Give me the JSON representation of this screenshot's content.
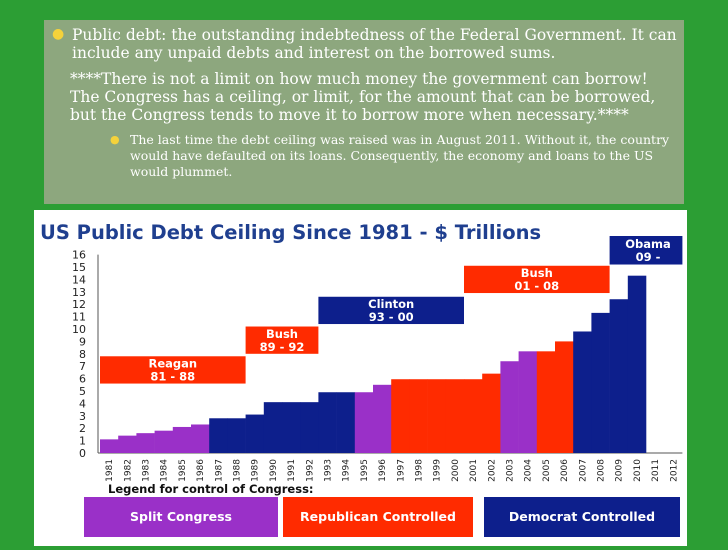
{
  "slide": {
    "bullet1": "Public debt: the outstanding indebtedness of the Federal Government.  It can include any unpaid debts and interest on the borrowed sums.",
    "bullet2": "****There is not a limit on how much money the government can borrow!  The Congress has a ceiling, or limit, for the amount that can be borrowed, but the Congress tends to move it to borrow more when necessary.****",
    "bullet3": "The last time the debt ceiling was raised was in August 2011.  Without it, the country would have defaulted on its loans.  Consequently, the economy and loans to the US would plummet."
  },
  "colors": {
    "background": "#2c9e34",
    "textbox": "#8da77e",
    "bullet": "#f4d23b",
    "title": "#1f3f8f",
    "split": "#9a30c8",
    "republican": "#ff2b00",
    "democrat": "#0d1f8c",
    "pres_democrat": "#0d1f8c",
    "pres_republican": "#ff2b00"
  },
  "chart_data": {
    "type": "bar",
    "title": "US Public Debt Ceiling Since 1981 - $ Trillions",
    "categories": [
      "1981",
      "1982",
      "1983",
      "1984",
      "1985",
      "1986",
      "1987",
      "1988",
      "1989",
      "1990",
      "1991",
      "1992",
      "1993",
      "1994",
      "1995",
      "1996",
      "1997",
      "1998",
      "1999",
      "2000",
      "2001",
      "2002",
      "2003",
      "2004",
      "2005",
      "2006",
      "2007",
      "2008",
      "2009",
      "2010",
      "2011",
      "2012"
    ],
    "values": [
      1.1,
      1.4,
      1.6,
      1.8,
      2.1,
      2.3,
      2.8,
      2.8,
      3.1,
      4.1,
      4.1,
      4.1,
      4.9,
      4.9,
      4.9,
      5.5,
      5.95,
      5.95,
      5.95,
      5.95,
      5.95,
      6.4,
      7.4,
      8.2,
      8.2,
      9.0,
      9.8,
      11.3,
      12.4,
      14.3,
      null,
      null
    ],
    "control": [
      "split",
      "split",
      "split",
      "split",
      "split",
      "split",
      "democrat",
      "democrat",
      "democrat",
      "democrat",
      "democrat",
      "democrat",
      "democrat",
      "democrat",
      "split",
      "split",
      "republican",
      "republican",
      "republican",
      "republican",
      "republican",
      "republican",
      "split",
      "split",
      "republican",
      "republican",
      "democrat",
      "democrat",
      "democrat",
      "democrat",
      null,
      null
    ],
    "ylim": [
      0,
      16
    ],
    "yticks": [
      "0",
      "1",
      "2",
      "3",
      "4",
      "5",
      "6",
      "7",
      "8",
      "9",
      "10",
      "11",
      "12",
      "13",
      "14",
      "15",
      "16"
    ],
    "legend_title": "Legend for control of Congress:",
    "legend": [
      {
        "key": "split",
        "label": "Split Congress"
      },
      {
        "key": "republican",
        "label": "Republican Controlled"
      },
      {
        "key": "democrat",
        "label": "Democrat Controlled"
      }
    ],
    "presidents": [
      {
        "name": "Reagan",
        "years": "81 - 88",
        "party": "pres_republican",
        "start": 1981,
        "end": 1988,
        "y_top": 7.8,
        "y_bottom": 5.6
      },
      {
        "name": "Bush",
        "years": "89 - 92",
        "party": "pres_republican",
        "start": 1989,
        "end": 1992,
        "y_top": 10.2,
        "y_bottom": 8.0
      },
      {
        "name": "Clinton",
        "years": "93 - 00",
        "party": "pres_democrat",
        "start": 1993,
        "end": 2000,
        "y_top": 12.6,
        "y_bottom": 10.4
      },
      {
        "name": "Bush",
        "years": "01 - 08",
        "party": "pres_republican",
        "start": 2001,
        "end": 2008,
        "y_top": 15.1,
        "y_bottom": 12.9
      },
      {
        "name": "Obama",
        "years": "09 -",
        "party": "pres_democrat",
        "start": 2009,
        "end": 2012,
        "y_top": 17.5,
        "y_bottom": 15.2
      }
    ]
  }
}
